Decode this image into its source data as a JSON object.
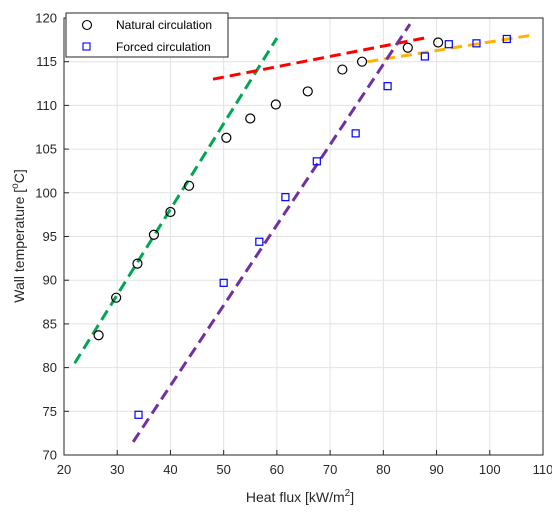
{
  "chart_data": {
    "type": "scatter",
    "xlabel": "Heat flux [kW/m²]",
    "ylabel": "Wall temperature [°C]",
    "xlim": [
      20,
      110
    ],
    "ylim": [
      70,
      120
    ],
    "xticks": [
      20,
      30,
      40,
      50,
      60,
      70,
      80,
      90,
      100,
      110
    ],
    "yticks": [
      70,
      75,
      80,
      85,
      90,
      95,
      100,
      105,
      110,
      115,
      120
    ],
    "grid": true,
    "legend_position": "top-left",
    "series": [
      {
        "name": "Natural circulation",
        "marker": "circle",
        "color": "#000000",
        "points": [
          [
            26.5,
            83.7
          ],
          [
            29.8,
            88.0
          ],
          [
            33.8,
            91.9
          ],
          [
            36.9,
            95.2
          ],
          [
            40.0,
            97.8
          ],
          [
            43.5,
            100.8
          ],
          [
            50.5,
            106.3
          ],
          [
            55.0,
            108.5
          ],
          [
            59.8,
            110.1
          ],
          [
            65.8,
            111.6
          ],
          [
            72.3,
            114.1
          ],
          [
            76.0,
            115.0
          ],
          [
            84.6,
            116.6
          ],
          [
            90.3,
            117.2
          ]
        ]
      },
      {
        "name": "Forced circulation",
        "marker": "square",
        "color": "#0000ff",
        "points": [
          [
            34.0,
            74.6
          ],
          [
            50.0,
            89.7
          ],
          [
            56.7,
            94.4
          ],
          [
            61.6,
            99.5
          ],
          [
            67.5,
            103.6
          ],
          [
            74.8,
            106.8
          ],
          [
            80.8,
            112.2
          ],
          [
            87.8,
            115.6
          ],
          [
            92.3,
            117.0
          ],
          [
            97.5,
            117.1
          ],
          [
            103.2,
            117.6
          ]
        ]
      }
    ],
    "trend_lines": [
      {
        "color": "#00a651",
        "from": [
          22.0,
          80.5
        ],
        "to": [
          60.0,
          117.7
        ]
      },
      {
        "color": "#ff0000",
        "from": [
          48.0,
          113.0
        ],
        "to": [
          88.5,
          117.8
        ]
      },
      {
        "color": "#ffb300",
        "from": [
          77.0,
          115.0
        ],
        "to": [
          107.5,
          118.0
        ]
      },
      {
        "color": "#7030a0",
        "from": [
          33.0,
          71.5
        ],
        "to": [
          85.0,
          119.3
        ]
      }
    ]
  }
}
